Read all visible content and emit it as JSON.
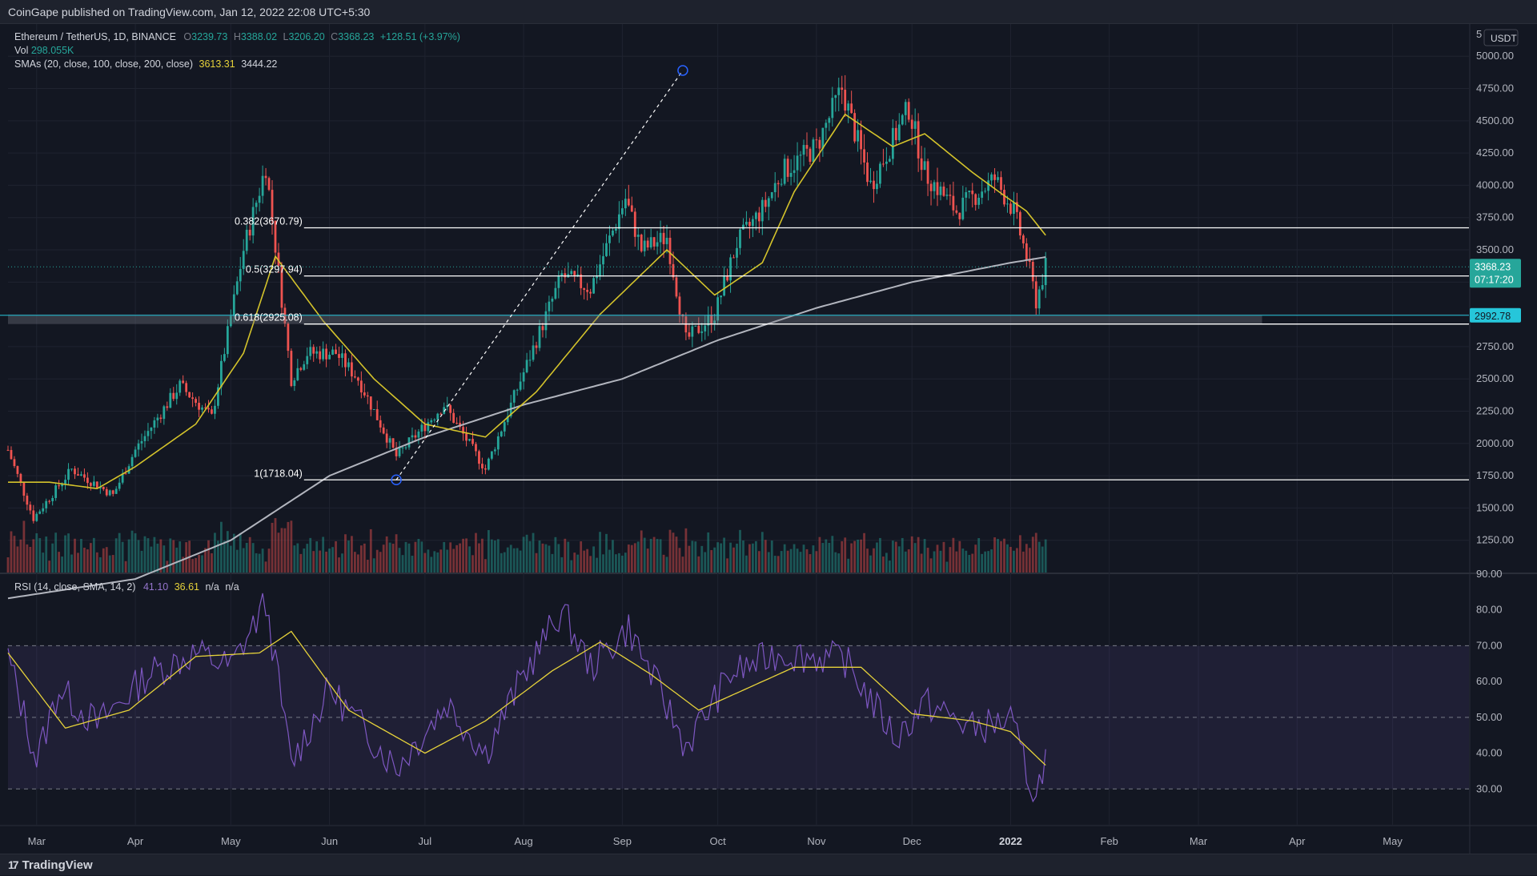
{
  "header": {
    "publisher_line": "CoinGape published on TradingView.com, Jan 12, 2022 22:08 UTC+5:30"
  },
  "main_legend": {
    "symbol": "Ethereum / TetherUS, 1D, BINANCE",
    "o_label": "O",
    "o": "3239.73",
    "h_label": "H",
    "h": "3388.02",
    "l_label": "L",
    "l": "3206.20",
    "c_label": "C",
    "c": "3368.23",
    "change": "+128.51 (+3.97%)",
    "vol_label": "Vol",
    "vol": "298.055K",
    "sma_label": "SMAs (20, close, 100, close, 200, close)",
    "sma20": "3613.31",
    "sma200": "3444.22"
  },
  "rsi_legend": {
    "label": "RSI (14, close, SMA, 14, 2)",
    "rsi": "41.10",
    "rsi_sma": "36.61",
    "na1": "n/a",
    "na2": "n/a"
  },
  "currency_button": "USDT",
  "price_axis_top_fragment": "5",
  "price_labels": {
    "last_price": "3368.23",
    "countdown": "07:17:20",
    "support_level": "2992.78"
  },
  "fib_labels": [
    "0.382(3670.79)",
    "0.5(3297.94)",
    "0.618(2925.08)",
    "1(1718.04)"
  ],
  "footer": {
    "brand": "TradingView",
    "brand_mark": "17"
  },
  "colors": {
    "up": "#26a69a",
    "down": "#ef5350",
    "sma20": "#d4c32b",
    "sma200": "#b2b5be",
    "rsi": "#7e57c2",
    "rsi_sma": "#e6d23a",
    "bg": "#131722",
    "grid": "#1f2330",
    "cyan": "#26c6da"
  },
  "chart_data": [
    {
      "type": "candlestick",
      "title": "Ethereum / TetherUS, 1D, BINANCE",
      "y_ticks": [
        "5000.00",
        "4750.00",
        "4500.00",
        "4250.00",
        "4000.00",
        "3750.00",
        "3500.00",
        "3250.00",
        "3000.00",
        "2750.00",
        "2500.00",
        "2250.00",
        "2000.00",
        "1750.00",
        "1500.00",
        "1250.00"
      ],
      "x_ticks": [
        "Mar",
        "Apr",
        "May",
        "Jun",
        "Jul",
        "Aug",
        "Sep",
        "Oct",
        "Nov",
        "Dec",
        "2022",
        "Feb",
        "Mar",
        "Apr",
        "May"
      ],
      "ylim": [
        1000,
        5200
      ],
      "x_range": [
        "2021-02-20",
        "2022-05-25"
      ],
      "grid": true,
      "horizontal_levels": [
        {
          "label": "0.382(3670.79)",
          "value": 3670.79
        },
        {
          "label": "0.5(3297.94)",
          "value": 3297.94
        },
        {
          "label": "0.618(2925.08)",
          "value": 2925.08
        },
        {
          "label": "1(1718.04)",
          "value": 1718.04
        },
        {
          "label": "2992.78",
          "value": 2992.78
        }
      ],
      "trend_line": {
        "from": {
          "date": "2021-06-22",
          "price": 1718.04
        },
        "to": {
          "date": "2021-09-20",
          "price": 4890
        }
      },
      "close_anchors": [
        [
          "2021-02-20",
          1950
        ],
        [
          "2021-02-28",
          1420
        ],
        [
          "2021-03-12",
          1800
        ],
        [
          "2021-03-25",
          1600
        ],
        [
          "2021-04-01",
          1950
        ],
        [
          "2021-04-15",
          2450
        ],
        [
          "2021-04-25",
          2200
        ],
        [
          "2021-05-05",
          3500
        ],
        [
          "2021-05-12",
          4150
        ],
        [
          "2021-05-20",
          2500
        ],
        [
          "2021-05-25",
          2700
        ],
        [
          "2021-06-03",
          2700
        ],
        [
          "2021-06-10",
          2500
        ],
        [
          "2021-06-22",
          1900
        ],
        [
          "2021-07-07",
          2300
        ],
        [
          "2021-07-20",
          1800
        ],
        [
          "2021-08-01",
          2550
        ],
        [
          "2021-08-13",
          3300
        ],
        [
          "2021-08-22",
          3200
        ],
        [
          "2021-09-02",
          3900
        ],
        [
          "2021-09-07",
          3500
        ],
        [
          "2021-09-15",
          3600
        ],
        [
          "2021-09-21",
          2800
        ],
        [
          "2021-09-30",
          3000
        ],
        [
          "2021-10-07",
          3550
        ],
        [
          "2021-10-16",
          3850
        ],
        [
          "2021-10-21",
          4100
        ],
        [
          "2021-11-01",
          4300
        ],
        [
          "2021-11-09",
          4750
        ],
        [
          "2021-11-18",
          4000
        ],
        [
          "2021-11-30",
          4600
        ],
        [
          "2021-12-05",
          4100
        ],
        [
          "2021-12-15",
          3800
        ],
        [
          "2021-12-27",
          4050
        ],
        [
          "2022-01-02",
          3800
        ],
        [
          "2022-01-06",
          3450
        ],
        [
          "2022-01-09",
          3100
        ],
        [
          "2022-01-12",
          3368.23
        ]
      ],
      "sma20_anchors": [
        [
          "2021-02-20",
          1700
        ],
        [
          "2021-03-05",
          1700
        ],
        [
          "2021-03-20",
          1650
        ],
        [
          "2021-04-01",
          1820
        ],
        [
          "2021-04-20",
          2150
        ],
        [
          "2021-05-05",
          2700
        ],
        [
          "2021-05-15",
          3450
        ],
        [
          "2021-05-30",
          2950
        ],
        [
          "2021-06-15",
          2500
        ],
        [
          "2021-07-01",
          2150
        ],
        [
          "2021-07-20",
          2050
        ],
        [
          "2021-08-05",
          2400
        ],
        [
          "2021-08-25",
          3000
        ],
        [
          "2021-09-15",
          3500
        ],
        [
          "2021-09-30",
          3150
        ],
        [
          "2021-10-15",
          3400
        ],
        [
          "2021-10-25",
          3950
        ],
        [
          "2021-11-10",
          4550
        ],
        [
          "2021-11-25",
          4300
        ],
        [
          "2021-12-05",
          4400
        ],
        [
          "2021-12-20",
          4100
        ],
        [
          "2021-12-30",
          3920
        ],
        [
          "2022-01-06",
          3800
        ],
        [
          "2022-01-12",
          3613.31
        ]
      ],
      "sma200_anchors": [
        [
          "2021-02-20",
          800
        ],
        [
          "2021-04-01",
          950
        ],
        [
          "2021-05-01",
          1250
        ],
        [
          "2021-06-01",
          1750
        ],
        [
          "2021-07-01",
          2050
        ],
        [
          "2021-08-01",
          2300
        ],
        [
          "2021-09-01",
          2500
        ],
        [
          "2021-10-01",
          2800
        ],
        [
          "2021-11-01",
          3050
        ],
        [
          "2021-12-01",
          3250
        ],
        [
          "2022-01-01",
          3400
        ],
        [
          "2022-01-12",
          3444.22
        ]
      ]
    },
    {
      "type": "line",
      "title": "RSI (14, close, SMA, 14, 2)",
      "y_ticks": [
        "90.00",
        "80.00",
        "70.00",
        "60.00",
        "50.00",
        "40.00",
        "30.00"
      ],
      "ylim": [
        20,
        90
      ],
      "band": [
        30,
        70
      ],
      "levels": [
        30,
        50,
        70
      ],
      "series": [
        {
          "name": "RSI",
          "anchors": [
            [
              "2021-02-20",
              67
            ],
            [
              "2021-03-01",
              38
            ],
            [
              "2021-03-08",
              58
            ],
            [
              "2021-03-20",
              48
            ],
            [
              "2021-04-05",
              62
            ],
            [
              "2021-04-20",
              68
            ],
            [
              "2021-05-01",
              64
            ],
            [
              "2021-05-12",
              82
            ],
            [
              "2021-05-20",
              37
            ],
            [
              "2021-06-01",
              58
            ],
            [
              "2021-06-22",
              36
            ],
            [
              "2021-07-08",
              54
            ],
            [
              "2021-07-20",
              40
            ],
            [
              "2021-08-01",
              62
            ],
            [
              "2021-08-13",
              80
            ],
            [
              "2021-08-22",
              64
            ],
            [
              "2021-09-03",
              75
            ],
            [
              "2021-09-21",
              42
            ],
            [
              "2021-10-05",
              62
            ],
            [
              "2021-10-20",
              68
            ],
            [
              "2021-11-10",
              66
            ],
            [
              "2021-11-26",
              44
            ],
            [
              "2021-12-05",
              54
            ],
            [
              "2021-12-20",
              47
            ],
            [
              "2022-01-01",
              49
            ],
            [
              "2022-01-09",
              27
            ],
            [
              "2022-01-12",
              41.1
            ]
          ]
        },
        {
          "name": "RSI SMA",
          "anchors": [
            [
              "2021-02-20",
              68
            ],
            [
              "2021-03-10",
              47
            ],
            [
              "2021-03-30",
              52
            ],
            [
              "2021-04-20",
              67
            ],
            [
              "2021-05-10",
              68
            ],
            [
              "2021-05-20",
              74
            ],
            [
              "2021-06-07",
              52
            ],
            [
              "2021-07-01",
              40
            ],
            [
              "2021-07-20",
              49
            ],
            [
              "2021-08-10",
              63
            ],
            [
              "2021-08-25",
              71
            ],
            [
              "2021-09-10",
              62
            ],
            [
              "2021-09-25",
              52
            ],
            [
              "2021-10-10",
              58
            ],
            [
              "2021-10-25",
              64
            ],
            [
              "2021-11-15",
              64
            ],
            [
              "2021-12-01",
              51
            ],
            [
              "2021-12-20",
              49
            ],
            [
              "2022-01-01",
              46
            ],
            [
              "2022-01-12",
              36.61
            ]
          ]
        }
      ]
    }
  ]
}
